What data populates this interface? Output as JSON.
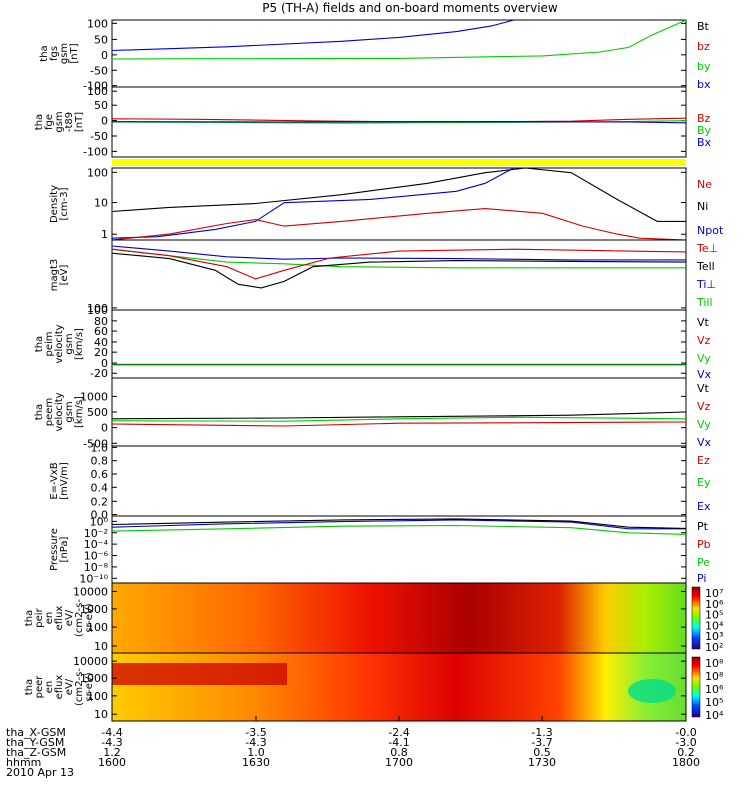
{
  "title": "P5 (TH-A) fields and on-board moments overview",
  "colors": {
    "black": "#000000",
    "red": "#d00000",
    "green": "#00cc00",
    "blue": "#0000d0",
    "yellow": "#ffff00"
  },
  "chart_data": [
    {
      "type": "line",
      "id": "fgs",
      "ylabel": [
        "tha",
        "fgs",
        "gsm",
        "[nT]"
      ],
      "yticks": [
        "100",
        "50",
        "0",
        "-50",
        "-100"
      ],
      "ylim": [
        -100,
        120
      ],
      "legend": [
        {
          "name": "Bt",
          "color": "#000000"
        },
        {
          "name": "bz",
          "color": "#d00000"
        },
        {
          "name": "by",
          "color": "#00cc00"
        },
        {
          "name": "bx",
          "color": "#0000d0"
        }
      ],
      "series": [
        {
          "name": "bx",
          "color": "#0000d0",
          "x": [
            0,
            0.2,
            0.4,
            0.5,
            0.6,
            0.66,
            0.7
          ],
          "y": [
            20,
            32,
            50,
            63,
            82,
            100,
            130
          ]
        },
        {
          "name": "by",
          "color": "#00cc00",
          "x": [
            0,
            0.2,
            0.5,
            0.75,
            0.85,
            0.9,
            0.94,
            1.0
          ],
          "y": [
            -8,
            -7,
            -6,
            2,
            15,
            30,
            70,
            130
          ]
        }
      ]
    },
    {
      "type": "line",
      "id": "fge",
      "ylabel": [
        "tha",
        "fge",
        "gsm",
        "-t89",
        "[nT]"
      ],
      "yticks": [
        "100",
        "50",
        "0",
        "-50",
        "-100"
      ],
      "ylim": [
        -130,
        130
      ],
      "legend": [
        {
          "name": "Bz",
          "color": "#d00000"
        },
        {
          "name": "By",
          "color": "#00cc00"
        },
        {
          "name": "Bx",
          "color": "#0000d0"
        }
      ],
      "series": [
        {
          "name": "Bz",
          "color": "#d00000",
          "x": [
            0,
            0.15,
            0.35,
            0.5,
            0.7,
            0.8,
            0.9,
            1.0
          ],
          "y": [
            12,
            10,
            4,
            1,
            2,
            3,
            10,
            14
          ]
        },
        {
          "name": "By",
          "color": "#00cc00",
          "x": [
            0,
            0.2,
            0.4,
            0.6,
            0.8,
            0.9,
            1.0
          ],
          "y": [
            0,
            -2,
            -4,
            -2,
            0,
            2,
            5
          ]
        },
        {
          "name": "Bx",
          "color": "#0000d0",
          "x": [
            0,
            0.3,
            0.6,
            0.9,
            1.0
          ],
          "y": [
            1,
            0,
            1,
            0,
            -3
          ]
        }
      ]
    },
    {
      "type": "line",
      "id": "density",
      "ylabel": [
        "Density",
        "[cm-3]"
      ],
      "yticks": [
        "100",
        "10",
        "1"
      ],
      "ylog": true,
      "ylim": [
        0.6,
        300
      ],
      "legend": [
        {
          "name": "Ne",
          "color": "#d00000"
        },
        {
          "name": "Ni",
          "color": "#000000"
        },
        {
          "name": "Npot",
          "color": "#0000d0"
        }
      ],
      "series": [
        {
          "name": "Ni",
          "color": "#000000",
          "x": [
            0,
            0.1,
            0.25,
            0.4,
            0.55,
            0.65,
            0.72,
            0.8,
            0.88,
            0.95,
            1.0
          ],
          "y": [
            7,
            10,
            14,
            30,
            80,
            200,
            400,
            200,
            20,
            3,
            3
          ]
        },
        {
          "name": "Npot",
          "color": "#0000d0",
          "x": [
            0,
            0.08,
            0.18,
            0.25,
            0.3,
            0.45,
            0.6,
            0.65,
            0.7
          ],
          "y": [
            0.7,
            0.8,
            1.5,
            3,
            15,
            20,
            40,
            80,
            400
          ]
        },
        {
          "name": "Ne",
          "color": "#d00000",
          "x": [
            0,
            0.1,
            0.2,
            0.25,
            0.3,
            0.4,
            0.55,
            0.65,
            0.75,
            0.82,
            0.88,
            0.92,
            1.0
          ],
          "y": [
            0.6,
            1,
            2.5,
            3.5,
            2,
            3,
            6,
            9,
            6,
            2,
            1,
            0.7,
            0.6
          ]
        }
      ]
    },
    {
      "type": "line",
      "id": "temp",
      "ylabel": [
        "magt3",
        "[eV]"
      ],
      "yticks": [
        "100"
      ],
      "ylog": true,
      "ylim": [
        100,
        8000
      ],
      "legend": [
        {
          "name": "Te⊥",
          "color": "#d00000"
        },
        {
          "name": "Tell",
          "color": "#000000"
        },
        {
          "name": "Ti⊥",
          "color": "#0000d0"
        },
        {
          "name": "Till",
          "color": "#00cc00"
        }
      ],
      "series": [
        {
          "name": "Till",
          "color": "#00cc00",
          "x": [
            0,
            0.1,
            0.2,
            0.3,
            0.4,
            0.6,
            0.8,
            1.0
          ],
          "y": [
            4500,
            3000,
            2000,
            1800,
            1500,
            1400,
            1400,
            1400
          ]
        },
        {
          "name": "Ti⊥",
          "color": "#0000d0",
          "x": [
            0,
            0.1,
            0.2,
            0.3,
            0.4,
            0.6,
            0.8,
            1.0
          ],
          "y": [
            5500,
            4000,
            2800,
            2400,
            2600,
            2500,
            2300,
            2300
          ]
        },
        {
          "name": "Tell",
          "color": "#000000",
          "x": [
            0,
            0.1,
            0.18,
            0.22,
            0.26,
            0.3,
            0.35,
            0.45,
            0.6,
            0.8,
            1.0
          ],
          "y": [
            3500,
            2500,
            1200,
            500,
            400,
            600,
            1500,
            2000,
            2200,
            2100,
            2000
          ]
        },
        {
          "name": "Te⊥",
          "color": "#d00000",
          "x": [
            0,
            0.1,
            0.2,
            0.25,
            0.3,
            0.38,
            0.5,
            0.7,
            0.9,
            1.0
          ],
          "y": [
            4500,
            3000,
            1500,
            700,
            1200,
            2600,
            4000,
            4500,
            4000,
            3800
          ]
        }
      ]
    },
    {
      "type": "line",
      "id": "peim",
      "ylabel": [
        "tha",
        "peim",
        "velocity",
        "gsm",
        "[km/s]"
      ],
      "yticks": [
        "100",
        "80",
        "60",
        "40",
        "20",
        "0",
        "-20"
      ],
      "ylim": [
        -25,
        105
      ],
      "legend": [
        {
          "name": "Vt",
          "color": "#000000"
        },
        {
          "name": "Vz",
          "color": "#d00000"
        },
        {
          "name": "Vy",
          "color": "#00cc00"
        },
        {
          "name": "Vx",
          "color": "#0000d0"
        }
      ],
      "series": [
        {
          "name": "Vt",
          "color": "#000000",
          "x": [
            0,
            0.5,
            1.0
          ],
          "y": [
            1,
            1,
            1
          ]
        },
        {
          "name": "Vy",
          "color": "#00cc00",
          "x": [
            0,
            0.5,
            1.0
          ],
          "y": [
            0,
            0,
            0
          ]
        }
      ]
    },
    {
      "type": "line",
      "id": "peem",
      "ylabel": [
        "tha",
        "peem",
        "velocity",
        "gsm",
        "[km/s]"
      ],
      "yticks": [
        "1000",
        "500",
        "0",
        "-500"
      ],
      "ylim": [
        -600,
        1100
      ],
      "legend": [
        {
          "name": "Vt",
          "color": "#000000"
        },
        {
          "name": "Vz",
          "color": "#d00000"
        },
        {
          "name": "Vy",
          "color": "#00cc00"
        },
        {
          "name": "Vx",
          "color": "#0000d0"
        }
      ],
      "series": [
        {
          "name": "Vz",
          "color": "#d00000",
          "x": [
            0,
            0.3,
            0.5,
            0.7,
            1.0
          ],
          "y": [
            -50,
            -100,
            -30,
            -20,
            0
          ]
        },
        {
          "name": "Vy",
          "color": "#00cc00",
          "x": [
            0,
            0.3,
            0.5,
            0.7,
            1.0
          ],
          "y": [
            30,
            20,
            80,
            120,
            80
          ]
        },
        {
          "name": "Vt",
          "color": "#000000",
          "x": [
            0,
            0.3,
            0.5,
            0.8,
            1.0
          ],
          "y": [
            80,
            100,
            130,
            170,
            250
          ]
        }
      ]
    },
    {
      "type": "line",
      "id": "efield",
      "ylabel": [
        "E=-VxB",
        "[mV/m]"
      ],
      "yticks": [
        "1.0",
        "0.8",
        "0.6",
        "0.4",
        "0.2",
        "0.0"
      ],
      "ylim": [
        0,
        1
      ],
      "legend": [
        {
          "name": "Ez",
          "color": "#d00000"
        },
        {
          "name": "Ey",
          "color": "#00cc00"
        },
        {
          "name": "Ex",
          "color": "#0000d0"
        }
      ],
      "series": []
    },
    {
      "type": "line",
      "id": "pressure",
      "ylabel": [
        "Pressure",
        "[nPa]"
      ],
      "yticks": [
        "10⁰",
        "10⁻²",
        "10⁻⁴",
        "10⁻⁶",
        "10⁻⁸",
        "10⁻¹⁰"
      ],
      "ylog": true,
      "ylim": [
        1e-11,
        10
      ],
      "legend": [
        {
          "name": "Pt",
          "color": "#000000"
        },
        {
          "name": "Pb",
          "color": "#d00000"
        },
        {
          "name": "Pe",
          "color": "#00cc00"
        },
        {
          "name": "Pi",
          "color": "#0000d0"
        }
      ],
      "series": [
        {
          "name": "Pe",
          "color": "#00cc00",
          "x": [
            0,
            0.2,
            0.4,
            0.6,
            0.8,
            0.9,
            1.0
          ],
          "y": [
            0.02,
            0.05,
            0.15,
            0.2,
            0.08,
            0.01,
            0.005
          ]
        },
        {
          "name": "Pi",
          "color": "#0000d0",
          "x": [
            0,
            0.2,
            0.4,
            0.6,
            0.8,
            0.9,
            1.0
          ],
          "y": [
            0.1,
            0.4,
            1,
            2,
            0.8,
            0.05,
            0.05
          ]
        },
        {
          "name": "Pt",
          "color": "#000000",
          "x": [
            0,
            0.2,
            0.4,
            0.6,
            0.8,
            0.9,
            1.0
          ],
          "y": [
            0.3,
            0.8,
            2,
            3,
            1.2,
            0.1,
            0.06
          ]
        }
      ]
    },
    {
      "type": "heatmap",
      "id": "peir",
      "ylabel": [
        "tha",
        "peir",
        "en",
        "eflux",
        "eV/",
        "(cm2-s-",
        "sr-eV)"
      ],
      "yticks": [
        "10000",
        "1000",
        "100",
        "10"
      ],
      "colorbar": [
        "10⁷",
        "10⁶",
        "10⁵",
        "10⁴",
        "10³",
        "10²"
      ]
    },
    {
      "type": "heatmap",
      "id": "peer",
      "ylabel": [
        "tha",
        "peer",
        "en",
        "eflux",
        "eV/",
        "(cm2-s-",
        "sr-eV)"
      ],
      "yticks": [
        "10000",
        "1000",
        "100",
        "10"
      ],
      "colorbar": [
        "10⁸",
        "10⁸",
        "10⁶",
        "10⁵",
        "10⁴"
      ]
    }
  ],
  "time_axis": {
    "rows": [
      {
        "label": "tha_X-GSM",
        "values": [
          "-4.4",
          "-3.5",
          "-2.4",
          "-1.3",
          "-0.0"
        ]
      },
      {
        "label": "tha_Y-GSM",
        "values": [
          "-4.3",
          "-4.3",
          "-4.1",
          "-3.7",
          "-3.0"
        ]
      },
      {
        "label": "tha_Z-GSM",
        "values": [
          "1.2",
          "1.0",
          "0.8",
          "0.5",
          "0.2"
        ]
      },
      {
        "label": "hhmm",
        "values": [
          "1600",
          "1630",
          "1700",
          "1730",
          "1800"
        ]
      }
    ],
    "date": "2010 Apr 13"
  }
}
